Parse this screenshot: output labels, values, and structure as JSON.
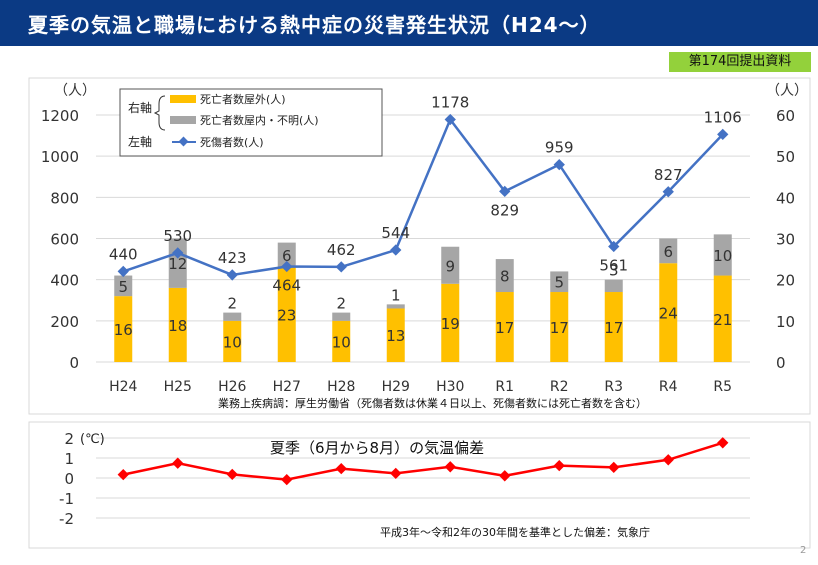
{
  "header": {
    "title": "夏季の気温と職場における熱中症の災害発生状況（H24〜）"
  },
  "badge": {
    "label": "第174回提出資料"
  },
  "page_number": "2",
  "notes": {
    "source": "業務上疾病調：厚生労働省（死傷者数は休業４日以上、死傷者数には死亡者数を含む）",
    "temp_title": "夏季（6月から8月）の気温偏差",
    "temp_source": "平成3年～令和2年の30年間を基準とした偏差：気象庁"
  },
  "legend": {
    "right_axis_label": "右軸",
    "left_axis_label": "左軸",
    "outdoor": "死亡者数屋外(人)",
    "indoor": "死亡者数屋内・不明(人)",
    "casualties": "死傷者数(人)"
  },
  "colors": {
    "header": "#0b3a84",
    "outdoor": "#ffc000",
    "indoor": "#a6a6a6",
    "line": "#4472c4",
    "temp": "#ff0000",
    "badge": "#93d13b"
  },
  "chart_data": [
    {
      "type": "bar",
      "categories": [
        "H24",
        "H25",
        "H26",
        "H27",
        "H28",
        "H29",
        "H30",
        "R1",
        "R2",
        "R3",
        "R4",
        "R5"
      ],
      "left_axis": {
        "unit": "（人）",
        "ylim": [
          0,
          1200
        ],
        "ticks": [
          0,
          200,
          400,
          600,
          800,
          1000,
          1200
        ]
      },
      "right_axis": {
        "unit": "（人）",
        "ylim": [
          0,
          60
        ],
        "ticks": [
          0,
          10,
          20,
          30,
          40,
          50,
          60
        ]
      },
      "series": [
        {
          "name": "死亡者数屋外(人)",
          "type": "bar",
          "axis": "right",
          "stacked": true,
          "values": [
            16,
            18,
            10,
            23,
            10,
            13,
            19,
            17,
            17,
            17,
            24,
            21
          ]
        },
        {
          "name": "死亡者数屋内・不明(人)",
          "type": "bar",
          "axis": "right",
          "stacked": true,
          "values": [
            5,
            12,
            2,
            6,
            2,
            1,
            9,
            8,
            5,
            3,
            6,
            10
          ]
        },
        {
          "name": "死傷者数(人)",
          "type": "line",
          "axis": "left",
          "values": [
            440,
            530,
            423,
            464,
            462,
            544,
            1178,
            829,
            959,
            561,
            827,
            1106
          ]
        }
      ],
      "grid": true,
      "legend_position": "top-left"
    },
    {
      "type": "line",
      "title": "夏季（6月から8月）の気温偏差",
      "categories": [
        "H24",
        "H25",
        "H26",
        "H27",
        "H28",
        "H29",
        "H30",
        "R1",
        "R2",
        "R3",
        "R4",
        "R5"
      ],
      "ylabel": "(℃)",
      "ylim": [
        -2,
        2
      ],
      "ticks": [
        2,
        1,
        0,
        -1,
        -2
      ],
      "series": [
        {
          "values": [
            0.17,
            0.74,
            0.18,
            -0.08,
            0.47,
            0.23,
            0.56,
            0.11,
            0.62,
            0.53,
            0.91,
            1.76
          ]
        }
      ],
      "grid": true
    }
  ]
}
